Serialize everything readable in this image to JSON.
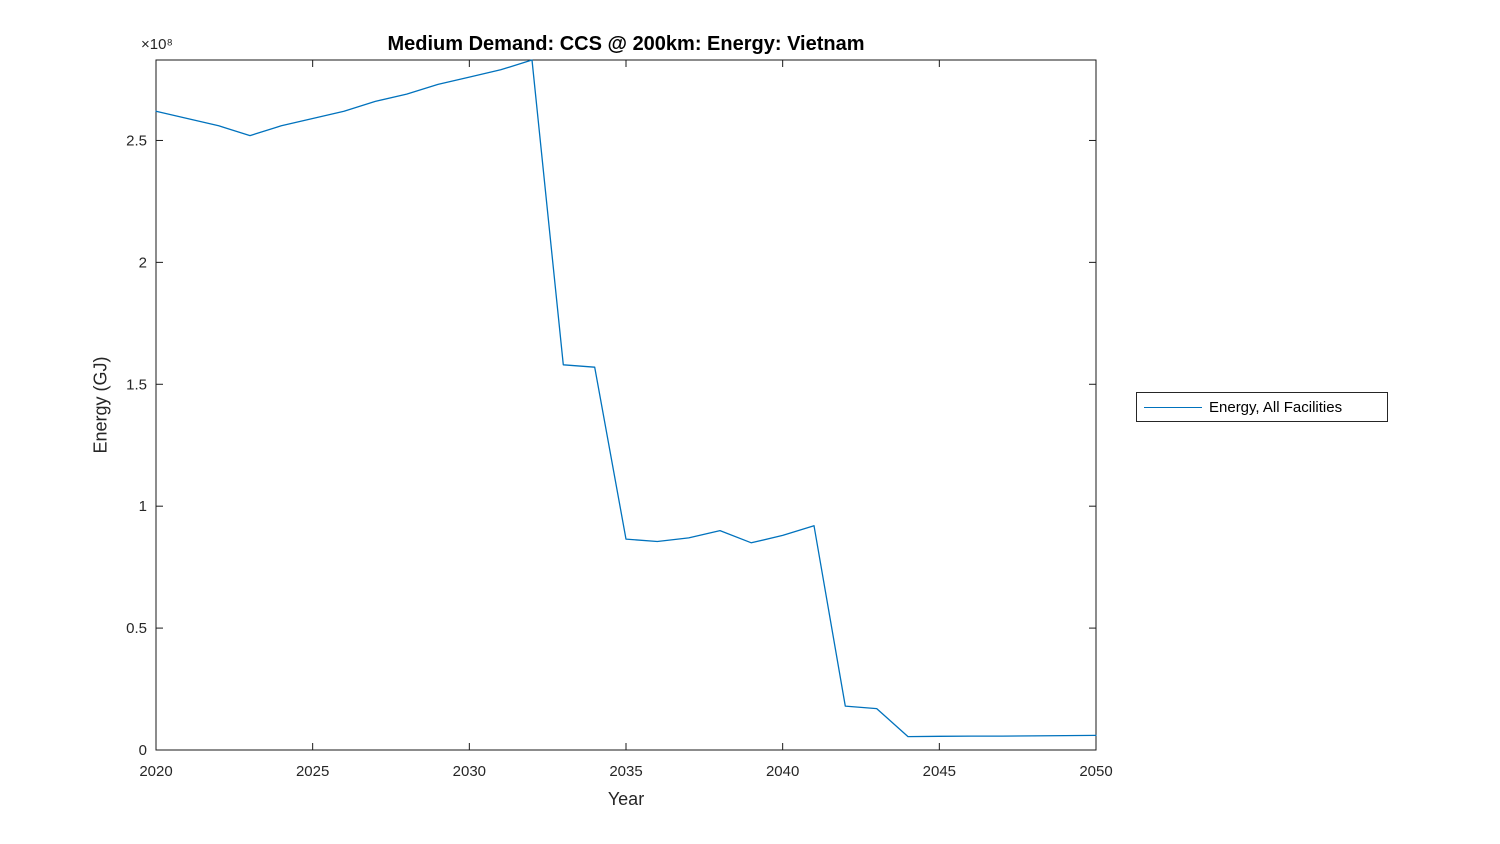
{
  "figure": {
    "background": "#ffffff"
  },
  "chart_data": {
    "type": "line",
    "title": "Medium Demand: CCS @ 200km: Energy: Vietnam",
    "xlabel": "Year",
    "ylabel": "Energy (GJ)",
    "y_offset_text": "×10⁸",
    "xlim": [
      2020,
      2050
    ],
    "ylim": [
      0,
      283000000.0
    ],
    "grid": false,
    "box": true,
    "tick_direction": "in",
    "axis_color": "#1a1a1a",
    "text_color": "#262626",
    "title_color": "#000000",
    "xticks": {
      "values": [
        2020,
        2025,
        2030,
        2035,
        2040,
        2045,
        2050
      ],
      "labels": [
        "2020",
        "2025",
        "2030",
        "2035",
        "2040",
        "2045",
        "2050"
      ]
    },
    "yticks": {
      "values": [
        0,
        50000000.0,
        100000000.0,
        150000000.0,
        200000000.0,
        250000000.0
      ],
      "labels": [
        "0",
        "0.5",
        "1",
        "1.5",
        "2",
        "2.5"
      ]
    },
    "legend": {
      "position": "right-outside",
      "border_color": "#262626",
      "background": "#ffffff"
    },
    "series": [
      {
        "name": "Energy, All Facilities",
        "color": "#0072BD",
        "points": [
          [
            2020,
            262000000.0
          ],
          [
            2021,
            259000000.0
          ],
          [
            2022,
            256000000.0
          ],
          [
            2023,
            252000000.0
          ],
          [
            2024,
            256000000.0
          ],
          [
            2025,
            259000000.0
          ],
          [
            2026,
            262000000.0
          ],
          [
            2027,
            266000000.0
          ],
          [
            2028,
            269000000.0
          ],
          [
            2029,
            273000000.0
          ],
          [
            2030,
            276000000.0
          ],
          [
            2031,
            279000000.0
          ],
          [
            2032,
            283000000.0
          ],
          [
            2033,
            158000000.0
          ],
          [
            2034,
            157000000.0
          ],
          [
            2035,
            86500000.0
          ],
          [
            2036,
            85500000.0
          ],
          [
            2037,
            87000000.0
          ],
          [
            2038,
            90000000.0
          ],
          [
            2039,
            85000000.0
          ],
          [
            2040,
            88000000.0
          ],
          [
            2041,
            92000000.0
          ],
          [
            2042,
            18000000.0
          ],
          [
            2043,
            17000000.0
          ],
          [
            2044,
            5500000.0
          ],
          [
            2045,
            5600000.0
          ],
          [
            2046,
            5700000.0
          ],
          [
            2047,
            5700000.0
          ],
          [
            2048,
            5800000.0
          ],
          [
            2049,
            5900000.0
          ],
          [
            2050,
            6000000.0
          ]
        ]
      }
    ]
  }
}
